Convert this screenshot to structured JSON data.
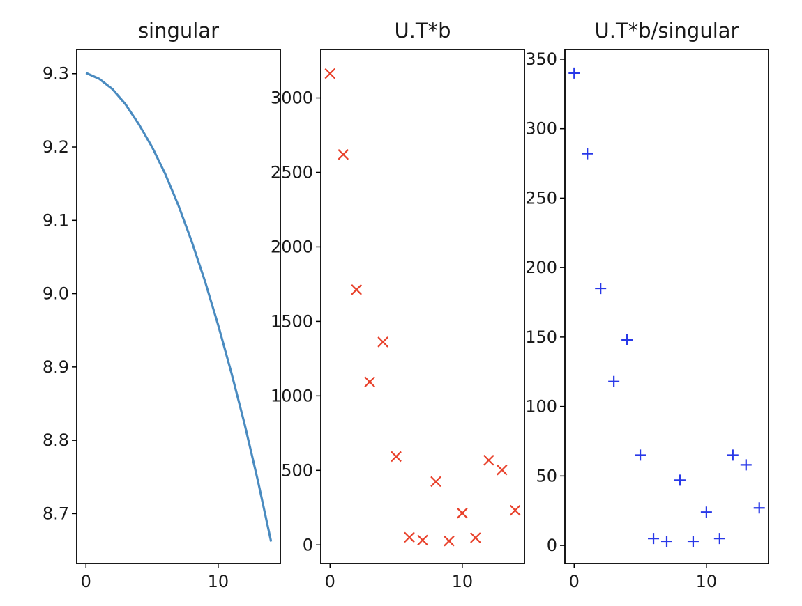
{
  "chart_data": [
    {
      "type": "line",
      "title": "singular",
      "x": [
        0,
        1,
        2,
        3,
        4,
        5,
        6,
        7,
        8,
        9,
        10,
        11,
        12,
        13,
        14
      ],
      "series": [
        {
          "values": [
            9.301,
            9.293,
            9.279,
            9.258,
            9.231,
            9.2,
            9.163,
            9.12,
            9.071,
            9.017,
            8.957,
            8.892,
            8.822,
            8.745,
            8.662
          ]
        }
      ],
      "xlim": [
        -0.7,
        14.7
      ],
      "ylim": [
        8.632,
        9.333
      ],
      "xticks": [
        0,
        10
      ],
      "yticks": [
        8.7,
        8.8,
        8.9,
        9.0,
        9.1,
        9.2,
        9.3
      ],
      "xtick_labels": [
        "0",
        "10"
      ],
      "ytick_labels": [
        "8.7",
        "8.8",
        "8.9",
        "9.0",
        "9.1",
        "9.2",
        "9.3"
      ],
      "color": "#4a8bc0",
      "grid": false
    },
    {
      "type": "scatter",
      "title": "U.T*b",
      "marker": "x",
      "x": [
        0,
        1,
        2,
        3,
        4,
        5,
        6,
        7,
        8,
        9,
        10,
        11,
        12,
        13,
        14
      ],
      "series": [
        {
          "values": [
            3163,
            2620,
            1713,
            1094,
            1362,
            593,
            51,
            32,
            425,
            26,
            213,
            48,
            568,
            503,
            232
          ]
        }
      ],
      "xlim": [
        -0.7,
        14.7
      ],
      "ylim": [
        -125,
        3325
      ],
      "xticks": [
        0,
        10
      ],
      "yticks": [
        0,
        500,
        1000,
        1500,
        2000,
        2500,
        3000
      ],
      "xtick_labels": [
        "0",
        "10"
      ],
      "ytick_labels": [
        "0",
        "500",
        "1000",
        "1500",
        "2000",
        "2500",
        "3000"
      ],
      "color": "#e8402a",
      "grid": false
    },
    {
      "type": "scatter",
      "title": "U.T*b/singular",
      "marker": "+",
      "x": [
        0,
        1,
        2,
        3,
        4,
        5,
        6,
        7,
        8,
        9,
        10,
        11,
        12,
        13,
        14
      ],
      "series": [
        {
          "values": [
            340,
            282,
            185,
            118,
            148,
            65,
            5,
            3,
            47,
            3,
            24,
            5,
            65,
            58,
            27
          ]
        }
      ],
      "xlim": [
        -0.7,
        14.7
      ],
      "ylim": [
        -13,
        357
      ],
      "xticks": [
        0,
        10
      ],
      "yticks": [
        0,
        50,
        100,
        150,
        200,
        250,
        300,
        350
      ],
      "xtick_labels": [
        "0",
        "10"
      ],
      "ytick_labels": [
        "0",
        "50",
        "100",
        "150",
        "200",
        "250",
        "300",
        "350"
      ],
      "color": "#2838e8",
      "grid": false
    }
  ]
}
